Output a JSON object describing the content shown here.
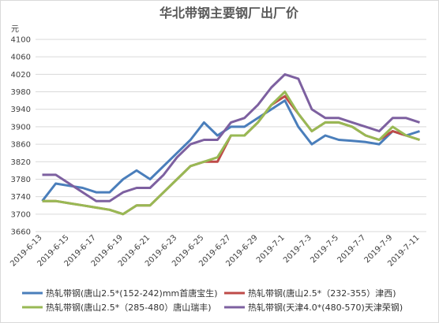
{
  "chart_data": {
    "type": "line",
    "title": "华北带钢主要钢厂出厂价",
    "y_label": "元",
    "categories": [
      "2019-6-13",
      null,
      "2019-6-15",
      null,
      "2019-6-17",
      null,
      "2019-6-19",
      null,
      "2019-6-21",
      null,
      "2019-6-23",
      null,
      "2019-6-25",
      null,
      "2019-6-27",
      null,
      "2019-6-29",
      null,
      "2019-7-1",
      null,
      "2019-7-3",
      null,
      "2019-7-5",
      null,
      "2019-7-7",
      null,
      "2019-7-9",
      null,
      "2019-7-11"
    ],
    "series": [
      {
        "name": "热轧带钢(唐山2.5*(152-242)mm首唐宝生)",
        "color": "#4a7ebb",
        "values": [
          3730,
          3770,
          3765,
          3760,
          3750,
          3750,
          3780,
          3800,
          3780,
          3810,
          3840,
          3870,
          3910,
          3880,
          3900,
          3900,
          3920,
          3940,
          3960,
          3900,
          3860,
          3880,
          3870,
          3868,
          3865,
          3860,
          3890,
          3880,
          3890
        ]
      },
      {
        "name": "热轧带钢(唐山2.5*（232-355）津西)",
        "color": "#be4b48",
        "values": [
          3730,
          3730,
          3725,
          3720,
          3715,
          3710,
          3700,
          3720,
          3720,
          3750,
          3780,
          3810,
          3820,
          3820,
          3880,
          3880,
          3910,
          3950,
          3970,
          3930,
          3890,
          3910,
          3910,
          3900,
          3880,
          3870,
          3890,
          3880,
          3870
        ]
      },
      {
        "name": "热轧带钢(唐山2.5*（285-480）唐山瑞丰)",
        "color": "#98b954",
        "values": [
          3730,
          3730,
          3725,
          3720,
          3715,
          3710,
          3700,
          3720,
          3720,
          3750,
          3780,
          3810,
          3820,
          3830,
          3880,
          3880,
          3910,
          3950,
          3980,
          3930,
          3890,
          3910,
          3910,
          3900,
          3880,
          3870,
          3900,
          3880,
          3870
        ]
      },
      {
        "name": "热轧带钢(天津4.0*(480-570)天津荣钢)",
        "color": "#7d60a0",
        "values": [
          3790,
          3790,
          3770,
          3750,
          3730,
          3730,
          3750,
          3760,
          3760,
          3790,
          3830,
          3860,
          3870,
          3870,
          3910,
          3920,
          3950,
          3990,
          4020,
          4010,
          3940,
          3920,
          3920,
          3910,
          3900,
          3890,
          3920,
          3920,
          3910
        ]
      }
    ],
    "ylim": [
      3660,
      4100
    ],
    "yticks": [
      3660,
      3700,
      3740,
      3780,
      3820,
      3860,
      3900,
      3940,
      3980,
      4020,
      4060,
      4100
    ],
    "grid": true
  }
}
